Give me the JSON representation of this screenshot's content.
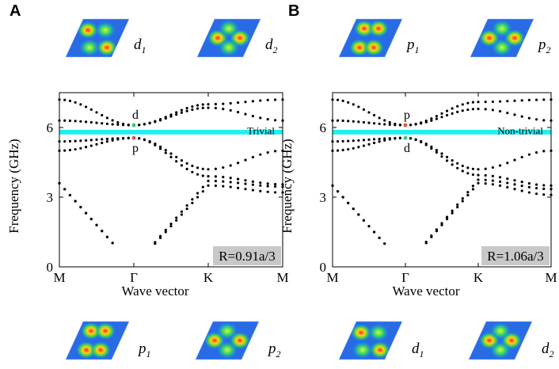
{
  "chart_data": [
    {
      "type": "scatter",
      "panel": "A",
      "ylabel": "Frequency (GHz)",
      "xlabel": "Wave vector",
      "x_ticks": [
        "M",
        "Γ",
        "K",
        "M"
      ],
      "y_ticks": [
        0,
        3,
        6
      ],
      "ylim": [
        0,
        7.5
      ],
      "gap_label": "Trivial",
      "gap_range": [
        5.7,
        5.9
      ],
      "radius_label": "R=0.91a/3",
      "upper_gamma_label": "d",
      "lower_gamma_label": "p",
      "upper_gamma_color": "#2ecc71",
      "lower_gamma_color": "#e74c3c",
      "gamma_upper_freq": 6.1,
      "gamma_lower_freq": 5.55,
      "top_modes": [
        {
          "label": "d",
          "sub": "1"
        },
        {
          "label": "d",
          "sub": "2"
        }
      ],
      "bottom_modes": [
        {
          "label": "p",
          "sub": "1"
        },
        {
          "label": "p",
          "sub": "2"
        }
      ],
      "bands": [
        {
          "name": "band1-acoustic",
          "M": 3.6,
          "G": 0.0,
          "K": 3.5,
          "M2": 3.2
        },
        {
          "name": "band2",
          "M": 3.6,
          "G": 0.0,
          "K": 3.7,
          "M2": 3.45
        },
        {
          "name": "band3",
          "M": 5.0,
          "G": 5.55,
          "K": 3.9,
          "M2": 3.55
        },
        {
          "name": "band4",
          "M": 5.4,
          "G": 5.55,
          "K": 4.2,
          "M2": 5.0
        },
        {
          "name": "band5",
          "M": 6.3,
          "G": 6.1,
          "K": 6.85,
          "M2": 6.3
        },
        {
          "name": "band6",
          "M": 7.2,
          "G": 6.1,
          "K": 7.0,
          "M2": 7.2
        }
      ]
    },
    {
      "type": "scatter",
      "panel": "B",
      "ylabel": "Frequency (GHz)",
      "xlabel": "Wave vector",
      "x_ticks": [
        "M",
        "Γ",
        "K",
        "M"
      ],
      "y_ticks": [
        0,
        3,
        6
      ],
      "ylim": [
        0,
        7.5
      ],
      "gap_label": "Non-trivial",
      "gap_range": [
        5.7,
        5.9
      ],
      "radius_label": "R=1.06a/3",
      "upper_gamma_label": "p",
      "lower_gamma_label": "d",
      "upper_gamma_color": "#e74c3c",
      "lower_gamma_color": "#2ecc71",
      "gamma_upper_freq": 6.1,
      "gamma_lower_freq": 5.55,
      "top_modes": [
        {
          "label": "p",
          "sub": "1"
        },
        {
          "label": "p",
          "sub": "2"
        }
      ],
      "bottom_modes": [
        {
          "label": "d",
          "sub": "1"
        },
        {
          "label": "d",
          "sub": "2"
        }
      ],
      "bands": [
        {
          "name": "band1-acoustic",
          "M": 3.5,
          "G": 0.0,
          "K": 3.6,
          "M2": 3.1
        },
        {
          "name": "band2",
          "M": 3.5,
          "G": 0.0,
          "K": 3.75,
          "M2": 3.35
        },
        {
          "name": "band3",
          "M": 5.0,
          "G": 5.55,
          "K": 3.95,
          "M2": 3.5
        },
        {
          "name": "band4",
          "M": 5.4,
          "G": 5.55,
          "K": 4.2,
          "M2": 5.0
        },
        {
          "name": "band5",
          "M": 6.3,
          "G": 6.1,
          "K": 6.8,
          "M2": 6.3
        },
        {
          "name": "band6",
          "M": 7.2,
          "G": 6.1,
          "K": 7.1,
          "M2": 7.2
        }
      ]
    }
  ]
}
